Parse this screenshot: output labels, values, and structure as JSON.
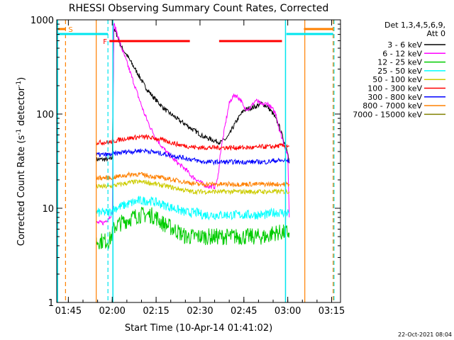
{
  "chart_data": {
    "type": "line",
    "title": "RHESSI Observing Summary Count Rates, Corrected",
    "xlabel": "Start Time (10-Apr-14 01:41:02)",
    "ylabel": "Corrected Count Rate (s⁻¹ detector⁻¹)",
    "ylabel_main": "Corrected Count Rate (s",
    "ylabel_sup1": "-1",
    "ylabel_mid": " detector",
    "ylabel_sup2": "-1",
    "ylabel_end": ")",
    "yscale": "log",
    "xlim_minutes": [
      0,
      97
    ],
    "ylim": [
      1,
      1000
    ],
    "x_ticks": [
      {
        "label": "01:45",
        "minute": 3.97
      },
      {
        "label": "02:00",
        "minute": 18.97
      },
      {
        "label": "02:15",
        "minute": 33.97
      },
      {
        "label": "02:30",
        "minute": 48.97
      },
      {
        "label": "02:45",
        "minute": 63.97
      },
      {
        "label": "03:00",
        "minute": 78.97
      },
      {
        "label": "03:15",
        "minute": 93.97
      }
    ],
    "y_ticks": [
      {
        "label": "1",
        "value": 1
      },
      {
        "label": "10",
        "value": 10
      },
      {
        "label": "100",
        "value": 100
      },
      {
        "label": "1000",
        "value": 1000
      }
    ],
    "legend": {
      "header1": "Det 1,3,4,5,6,9,",
      "header2": "Att 0",
      "placement": "right"
    },
    "series": [
      {
        "name": "3 - 6 keV",
        "color": "#000000",
        "x": [
          13.5,
          16,
          18,
          19,
          19.5,
          20.5,
          22,
          24,
          26,
          28,
          30,
          32,
          34,
          36,
          38,
          40,
          42,
          44,
          46,
          48,
          50,
          52,
          54,
          56,
          58,
          59,
          60,
          62,
          64,
          66,
          68,
          70,
          72,
          74,
          76,
          77,
          78,
          79,
          79.5
        ],
        "y": [
          33,
          33,
          33,
          34,
          800,
          700,
          520,
          420,
          330,
          260,
          200,
          165,
          140,
          120,
          105,
          95,
          85,
          78,
          70,
          64,
          58,
          55,
          52,
          50,
          55,
          60,
          70,
          90,
          110,
          115,
          120,
          130,
          120,
          100,
          75,
          60,
          48,
          40,
          30
        ]
      },
      {
        "name": "6 - 12 keV",
        "color": "#ff00ff",
        "x": [
          13.5,
          16,
          18,
          19,
          19.5,
          20.5,
          22,
          24,
          26,
          28,
          30,
          32,
          34,
          36,
          38,
          40,
          42,
          44,
          46,
          48,
          50,
          52,
          54,
          55,
          56,
          58,
          59,
          60,
          61,
          62,
          63,
          64,
          66,
          68,
          70,
          72,
          74,
          75,
          76,
          78,
          79,
          79.5
        ],
        "y": [
          7,
          7,
          8,
          9,
          900,
          750,
          520,
          350,
          230,
          150,
          100,
          72,
          55,
          45,
          38,
          33,
          29,
          26,
          22,
          20,
          18,
          17,
          17,
          20,
          40,
          90,
          130,
          150,
          160,
          150,
          140,
          115,
          115,
          140,
          125,
          130,
          110,
          100,
          70,
          45,
          35,
          8
        ]
      },
      {
        "name": "12 - 25 keV",
        "color": "#00cc00",
        "x": [
          13.5,
          16,
          18,
          20,
          22,
          24,
          26,
          28,
          30,
          32,
          34,
          36,
          38,
          40,
          42,
          44,
          46,
          48,
          50,
          52,
          54,
          56,
          58,
          60,
          62,
          64,
          66,
          68,
          70,
          72,
          74,
          76,
          78,
          79.5
        ],
        "y": [
          4.5,
          4.5,
          4.5,
          6.5,
          7,
          7.5,
          8,
          8.5,
          8.5,
          8.5,
          8,
          7,
          6.5,
          6,
          5.5,
          5,
          5,
          5,
          5,
          5,
          5,
          5,
          5,
          5,
          5,
          5,
          5,
          5,
          5,
          5,
          5.5,
          5.5,
          5.5,
          5.5
        ]
      },
      {
        "name": "25 - 50 keV",
        "color": "#00ffff",
        "x": [
          13.5,
          16,
          18,
          20,
          22,
          24,
          26,
          28,
          30,
          32,
          34,
          36,
          38,
          40,
          42,
          44,
          46,
          48,
          50,
          52,
          54,
          56,
          58,
          60,
          62,
          64,
          66,
          68,
          70,
          72,
          74,
          76,
          78,
          79.5
        ],
        "y": [
          9,
          9,
          9,
          10,
          10.5,
          11,
          11.5,
          12,
          12,
          12,
          11.5,
          11,
          10.5,
          10,
          9.5,
          9,
          9,
          9,
          8.5,
          8.5,
          8.5,
          8.5,
          8.5,
          8.5,
          8.5,
          8.5,
          8.5,
          8.5,
          8.5,
          8.5,
          9,
          9,
          9,
          9
        ]
      },
      {
        "name": "50 - 100 keV",
        "color": "#cccc00",
        "x": [
          13.5,
          16,
          18,
          20,
          22,
          24,
          26,
          28,
          30,
          32,
          34,
          36,
          38,
          40,
          42,
          44,
          46,
          48,
          50,
          52,
          54,
          56,
          58,
          60,
          62,
          64,
          66,
          68,
          70,
          72,
          74,
          76,
          78,
          79.5
        ],
        "y": [
          17,
          17,
          17,
          17.5,
          18,
          18.5,
          19,
          19,
          19,
          18.5,
          18,
          17.5,
          17,
          16.5,
          16,
          15.5,
          15,
          15,
          15,
          15,
          15,
          15,
          15,
          15,
          15,
          15,
          15,
          15,
          15,
          15,
          15,
          15,
          15,
          15
        ]
      },
      {
        "name": "100 - 300 keV",
        "color": "#ff0000",
        "x": [
          13.5,
          16,
          18,
          20,
          22,
          24,
          26,
          28,
          30,
          32,
          34,
          36,
          38,
          40,
          42,
          44,
          46,
          48,
          50,
          52,
          54,
          56,
          58,
          60,
          62,
          64,
          66,
          68,
          70,
          72,
          74,
          76,
          78,
          79.5
        ],
        "y": [
          50,
          50,
          50,
          52,
          54,
          55,
          56,
          57,
          57,
          56,
          55,
          53,
          51,
          49,
          47,
          46,
          45,
          44,
          44,
          44,
          44,
          44,
          44,
          44,
          44,
          44,
          44,
          44,
          45,
          45,
          45,
          46,
          46,
          46
        ]
      },
      {
        "name": "300 - 800 keV",
        "color": "#0000ff",
        "x": [
          13.5,
          16,
          18,
          20,
          22,
          24,
          26,
          28,
          30,
          32,
          34,
          36,
          38,
          40,
          42,
          44,
          46,
          48,
          50,
          52,
          54,
          56,
          58,
          60,
          62,
          64,
          66,
          68,
          70,
          72,
          74,
          76,
          78,
          79.5
        ],
        "y": [
          37,
          37,
          37,
          38,
          39,
          40,
          40,
          41,
          41,
          40,
          39,
          38,
          37,
          36,
          35,
          34,
          33,
          32,
          31,
          31,
          31,
          31,
          31,
          31,
          31,
          31,
          31,
          31,
          31,
          31,
          32,
          32,
          32,
          32
        ]
      },
      {
        "name": "800 - 7000 keV",
        "color": "#ff8000",
        "x": [
          13.5,
          16,
          18,
          20,
          22,
          24,
          26,
          28,
          30,
          32,
          34,
          36,
          38,
          40,
          42,
          44,
          46,
          48,
          50,
          52,
          54,
          56,
          58,
          60,
          62,
          64,
          66,
          68,
          70,
          72,
          74,
          76,
          78,
          79.5
        ],
        "y": [
          21,
          21,
          21,
          21.5,
          22,
          22.5,
          23,
          23,
          22.5,
          22,
          21.5,
          21,
          20.5,
          20,
          19.5,
          19,
          18.5,
          18,
          18,
          18,
          18,
          18,
          18,
          18,
          18,
          18,
          18,
          18,
          18,
          18,
          18,
          18,
          18,
          18
        ]
      },
      {
        "name": "7000 - 15000 keV",
        "color": "#808000",
        "x": [],
        "y": []
      }
    ],
    "markers": {
      "bars_orange": [
        {
          "x0": 0.5,
          "x1": 3.0
        },
        {
          "x0": 84.5,
          "x1": 94.5
        }
      ],
      "s_label": "S",
      "bars_cyan": [
        {
          "x0": 0.5,
          "x1": 17.5
        },
        {
          "x0": 78.5,
          "x1": 94.5
        }
      ],
      "f_label": "F",
      "bars_red": [
        {
          "x0": 18.0,
          "x1": 45.5
        },
        {
          "x0": 55.5,
          "x1": 77.0
        }
      ],
      "vlines_cyan_solid": [
        0.3,
        19.2,
        78.2
      ],
      "vlines_cyan_dashed": [
        17.5,
        94.8
      ],
      "vlines_orange_solid": [
        13.5,
        84.8
      ],
      "vlines_orange_dashed": [
        3.0,
        94.5
      ]
    }
  },
  "footer": {
    "date": "22-Oct-2021 08:04"
  }
}
